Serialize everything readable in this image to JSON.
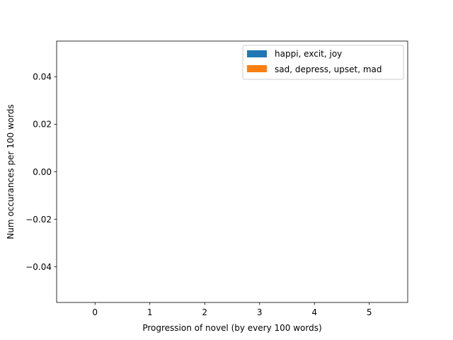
{
  "chart_data": {
    "type": "bar",
    "title": "",
    "xlabel": "Progression of novel (by every 100 words)",
    "ylabel": "Num occurances per 100 words",
    "categories": [
      "0",
      "1",
      "2",
      "3",
      "4",
      "5"
    ],
    "x": [
      0,
      1,
      2,
      3,
      4,
      5
    ],
    "xlim": [
      -0.7,
      5.7
    ],
    "ylim": [
      -0.055,
      0.055
    ],
    "yticks": [
      0.04,
      0.02,
      0.0,
      -0.02,
      -0.04
    ],
    "ytick_labels": [
      "0.04",
      "0.02",
      "0.00",
      "−0.02",
      "−0.04"
    ],
    "grid": false,
    "legend_position": "top-right",
    "series": [
      {
        "name": "happi, excit, joy",
        "color": "#1f77b4",
        "values": [
          0,
          0,
          0,
          0,
          0,
          0
        ]
      },
      {
        "name": "sad, depress, upset, mad",
        "color": "#ff7f0e",
        "values": [
          0,
          0,
          0,
          0,
          0,
          0
        ]
      }
    ]
  }
}
